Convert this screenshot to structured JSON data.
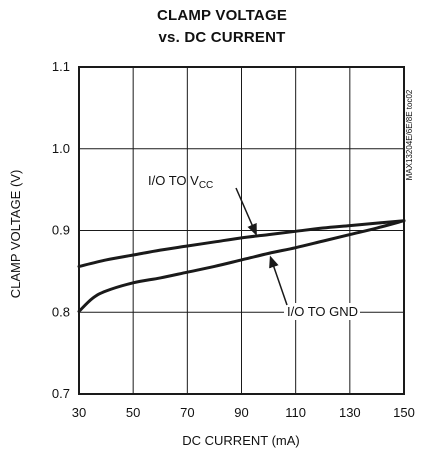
{
  "chart_data": {
    "type": "line",
    "title_line1": "CLAMP VOLTAGE",
    "title_line2": "vs. DC CURRENT",
    "xlabel": "DC CURRENT (mA)",
    "ylabel": "CLAMP VOLTAGE (V)",
    "xlim": [
      30,
      150
    ],
    "ylim": [
      0.7,
      1.1
    ],
    "x_ticks": [
      30,
      50,
      70,
      90,
      110,
      130,
      150
    ],
    "x_tick_labels": [
      "30",
      "50",
      "70",
      "90",
      "110",
      "130",
      "150"
    ],
    "y_ticks": [
      0.7,
      0.8,
      0.9,
      1.0,
      1.1
    ],
    "y_tick_labels": [
      "0.7",
      "0.8",
      "0.9",
      "1.0",
      "1.1"
    ],
    "grid": true,
    "series": [
      {
        "name": "I/O TO VCC",
        "x": [
          30,
          40,
          50,
          60,
          70,
          80,
          90,
          100,
          110,
          120,
          130,
          140,
          150
        ],
        "y": [
          0.856,
          0.864,
          0.87,
          0.876,
          0.881,
          0.886,
          0.891,
          0.895,
          0.899,
          0.903,
          0.906,
          0.909,
          0.912
        ]
      },
      {
        "name": "I/O TO GND",
        "x": [
          30,
          35,
          40,
          50,
          60,
          70,
          80,
          90,
          100,
          110,
          120,
          130,
          140,
          150
        ],
        "y": [
          0.801,
          0.817,
          0.826,
          0.836,
          0.842,
          0.849,
          0.856,
          0.864,
          0.872,
          0.879,
          0.887,
          0.895,
          0.903,
          0.912
        ]
      }
    ],
    "annotations": [
      {
        "text_main": "I/O TO V",
        "text_sub": "CC",
        "points_to_series": "I/O TO VCC",
        "arrow_target_x": 95,
        "arrow_target_y": 0.892
      },
      {
        "text_main": "I/O TO GND",
        "text_sub": "",
        "points_to_series": "I/O TO GND",
        "arrow_target_x": 100,
        "arrow_target_y": 0.872
      }
    ],
    "side_label": "MAX13204E/6E/8E toc02"
  },
  "colors": {
    "line": "#1a1a1a",
    "grid": "#1a1a1a",
    "background": "#ffffff"
  }
}
